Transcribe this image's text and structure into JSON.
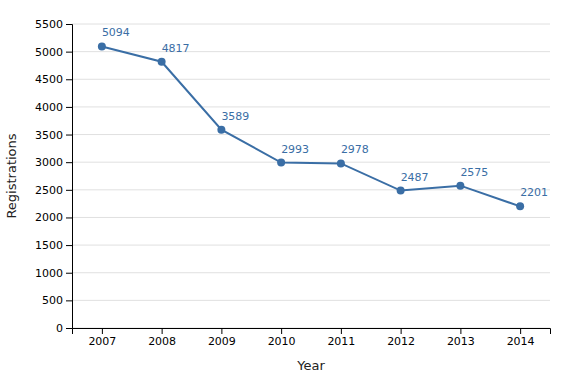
{
  "chart_data": {
    "type": "line",
    "x": [
      2007,
      2008,
      2009,
      2010,
      2011,
      2012,
      2013,
      2014
    ],
    "values": [
      5094,
      4817,
      3589,
      2993,
      2978,
      2487,
      2575,
      2201
    ],
    "color": "#3a6ea5",
    "marker": "circle",
    "xlabel": "Year",
    "ylabel": "Registrations",
    "xlim": [
      2006.5,
      2014.5
    ],
    "xticks": [
      2007,
      2008,
      2009,
      2010,
      2011,
      2012,
      2013,
      2014
    ],
    "ylim": [
      0,
      5500
    ],
    "yticks": [
      0,
      500,
      1000,
      1500,
      2000,
      2500,
      3000,
      3500,
      4000,
      4500,
      5000,
      5500
    ],
    "grid": "y",
    "data_labels": true
  }
}
